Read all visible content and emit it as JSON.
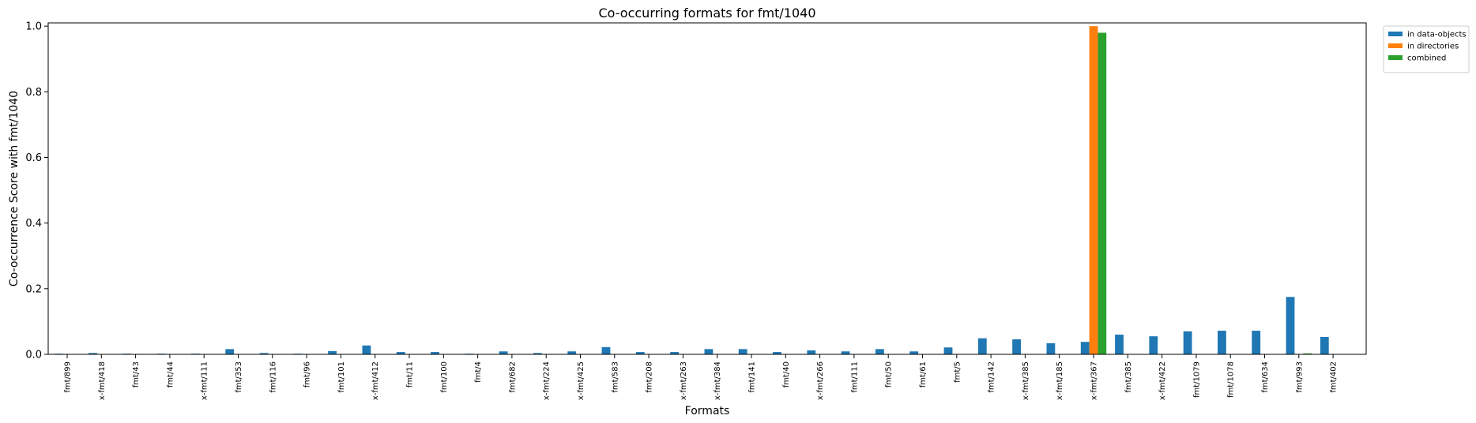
{
  "chart_data": {
    "type": "bar",
    "title": "Co-occurring formats for fmt/1040",
    "xlabel": "Formats",
    "ylabel": "Co-occurrence Score with fmt/1040",
    "ylim": [
      0,
      1.01
    ],
    "yticks": [
      "0.0",
      "0.2",
      "0.4",
      "0.6",
      "0.8",
      "1.0"
    ],
    "grid": false,
    "legend_position": "outside-top-right",
    "categories": [
      "fmt/899",
      "x-fmt/418",
      "fmt/43",
      "fmt/44",
      "x-fmt/111",
      "fmt/353",
      "fmt/116",
      "fmt/96",
      "fmt/101",
      "x-fmt/412",
      "fmt/11",
      "fmt/100",
      "fmt/4",
      "fmt/682",
      "x-fmt/224",
      "x-fmt/425",
      "fmt/583",
      "fmt/208",
      "x-fmt/263",
      "x-fmt/384",
      "fmt/141",
      "fmt/40",
      "x-fmt/266",
      "fmt/111",
      "fmt/50",
      "fmt/61",
      "fmt/5",
      "fmt/142",
      "x-fmt/385",
      "x-fmt/185",
      "x-fmt/367",
      "fmt/385",
      "x-fmt/422",
      "fmt/1079",
      "fmt/1078",
      "fmt/634",
      "fmt/993",
      "fmt/402"
    ],
    "series": [
      {
        "name": "in data-objects",
        "color": "#1f77b4",
        "values": [
          0.002,
          0.004,
          0.002,
          0.002,
          0.002,
          0.016,
          0.004,
          0.002,
          0.01,
          0.027,
          0.007,
          0.007,
          0.002,
          0.009,
          0.004,
          0.009,
          0.022,
          0.007,
          0.007,
          0.016,
          0.016,
          0.007,
          0.012,
          0.009,
          0.016,
          0.009,
          0.021,
          0.049,
          0.046,
          0.034,
          0.038,
          0.06,
          0.055,
          0.07,
          0.072,
          0.072,
          0.175,
          0.053
        ]
      },
      {
        "name": "in directories",
        "color": "#ff7f0e",
        "values": [
          0,
          0,
          0,
          0,
          0,
          0,
          0,
          0,
          0,
          0,
          0,
          0,
          0,
          0,
          0,
          0,
          0,
          0,
          0,
          0,
          0,
          0,
          0,
          0,
          0,
          0,
          0,
          0,
          0,
          0,
          1.0,
          0,
          0,
          0,
          0,
          0,
          0,
          0
        ]
      },
      {
        "name": "combined",
        "color": "#2ca02c",
        "values": [
          0,
          0,
          0,
          0,
          0,
          0,
          0,
          0,
          0,
          0,
          0,
          0,
          0,
          0,
          0,
          0,
          0,
          0,
          0,
          0,
          0,
          0,
          0,
          0,
          0,
          0,
          0,
          0,
          0,
          0,
          0.98,
          0,
          0,
          0,
          0,
          0,
          0.003,
          0
        ]
      }
    ]
  }
}
